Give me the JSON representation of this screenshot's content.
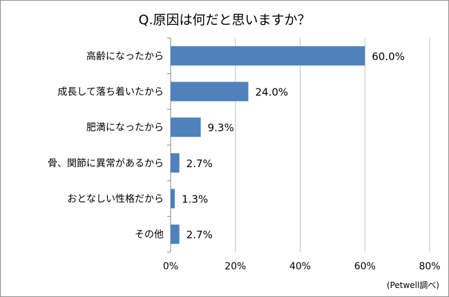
{
  "chart_data": {
    "type": "bar",
    "orientation": "horizontal",
    "title": "Q.原因は何だと思いますか？",
    "categories": [
      "高齢になったから",
      "成長して落ち着いたから",
      "肥満になったから",
      "骨、関節に異常があるから",
      "おとなしい性格だから",
      "その他"
    ],
    "values": [
      60.0,
      24.0,
      9.3,
      2.7,
      1.3,
      2.7
    ],
    "value_labels": [
      "60.0%",
      "24.0%",
      "9.3%",
      "2.7%",
      "1.3%",
      "2.7%"
    ],
    "xlim": [
      0,
      80
    ],
    "xticks": [
      0,
      20,
      40,
      60,
      80
    ],
    "xtick_labels": [
      "0%",
      "20%",
      "40%",
      "60%",
      "80%"
    ],
    "grid": true,
    "bar_color": "#4f81bd",
    "grid_color": "#bfbfbf",
    "source": "(Petwell調べ)"
  }
}
